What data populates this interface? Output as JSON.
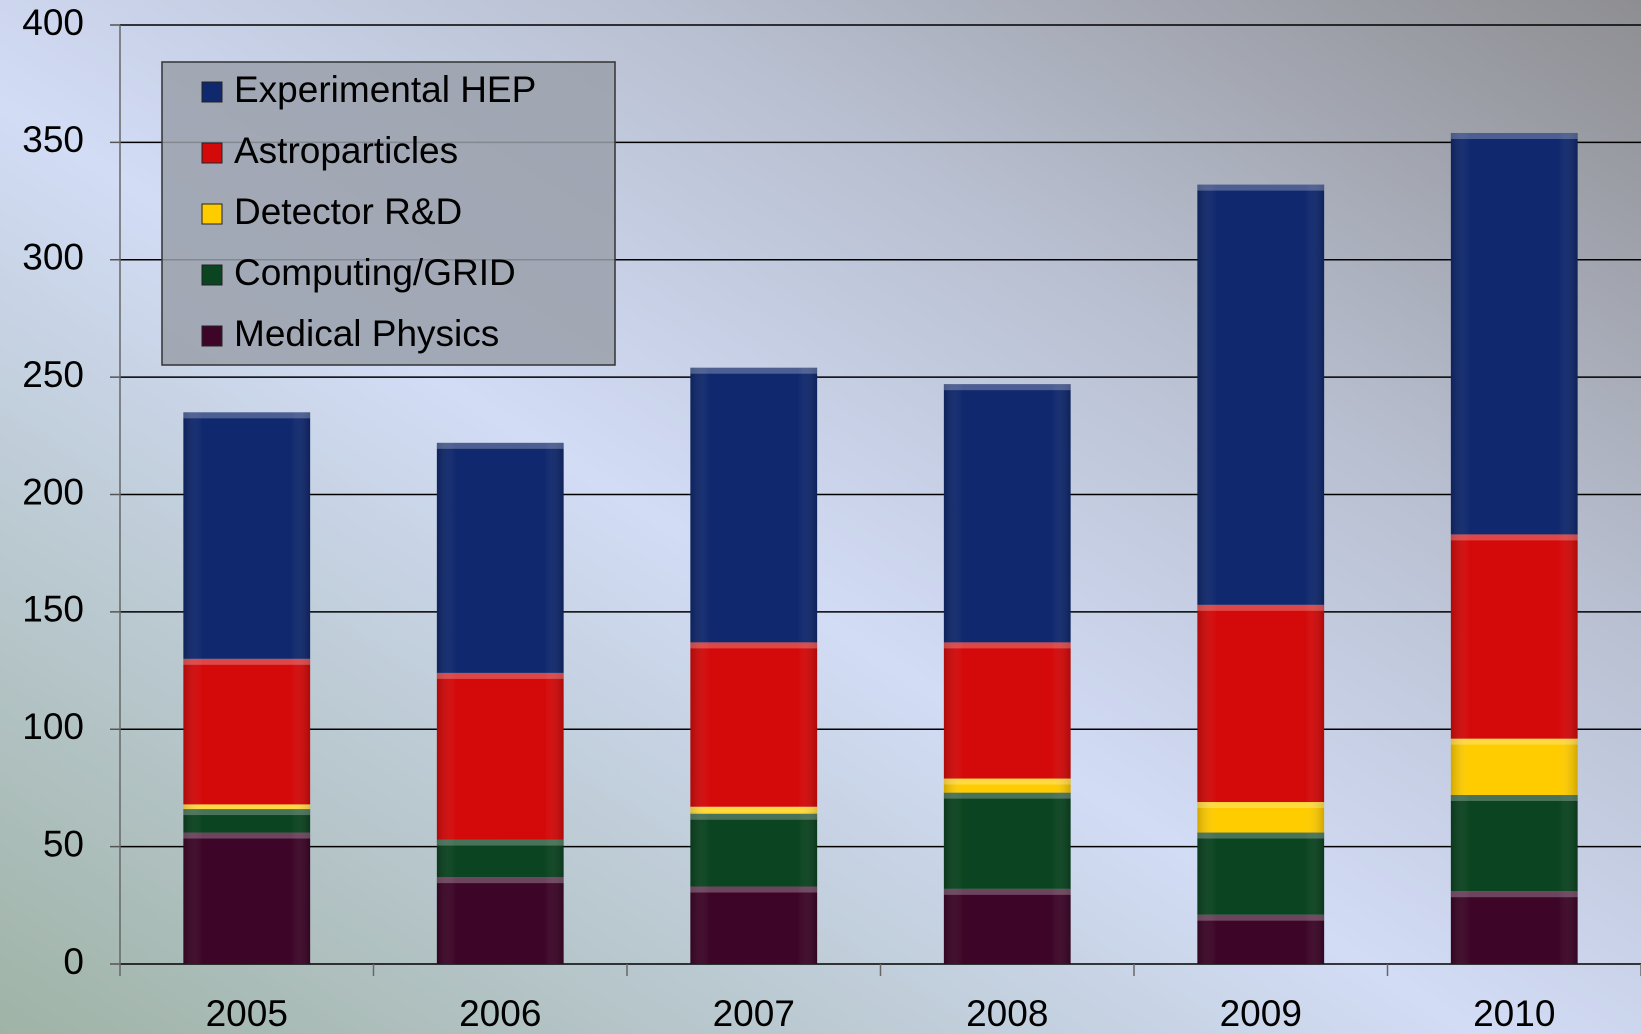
{
  "chart_data": {
    "type": "stacked_bar",
    "categories": [
      "2005",
      "2006",
      "2007",
      "2008",
      "2009",
      "2010"
    ],
    "series": [
      {
        "name": "Medical Physics",
        "color": "#3d0628",
        "values": [
          56,
          37,
          33,
          32,
          21,
          31
        ]
      },
      {
        "name": "Computing/GRID",
        "color": "#0b4420",
        "values": [
          10,
          16,
          31,
          41,
          35,
          41
        ]
      },
      {
        "name": "Detector R&D",
        "color": "#ffcc00",
        "values": [
          2,
          0,
          3,
          6,
          13,
          24
        ]
      },
      {
        "name": "Astroparticles",
        "color": "#d40a0a",
        "values": [
          62,
          71,
          70,
          58,
          84,
          87
        ]
      },
      {
        "name": "Experimental HEP",
        "color": "#10296e",
        "values": [
          105,
          98,
          117,
          110,
          179,
          171
        ]
      }
    ],
    "ylim": [
      0,
      400
    ],
    "yticks": [
      0,
      50,
      100,
      150,
      200,
      250,
      300,
      350,
      400
    ],
    "grid": true,
    "legend": "top-left"
  }
}
